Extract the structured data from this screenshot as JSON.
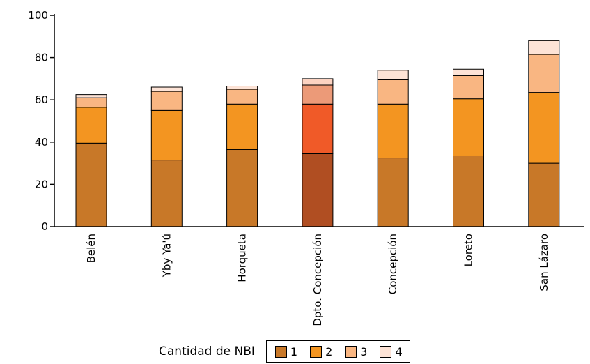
{
  "chart_data": {
    "type": "bar",
    "stacked": true,
    "categories": [
      "Belén",
      "Yby Ya'ú",
      "Horqueta",
      "Dpto. Concepción",
      "Concepción",
      "Loreto",
      "San Lázaro"
    ],
    "series": [
      {
        "name": "1",
        "color": "#c87828",
        "highlight_color": "#b04e22",
        "values": [
          39.5,
          31.5,
          36.5,
          34.5,
          32.5,
          33.5,
          30.0
        ]
      },
      {
        "name": "2",
        "color": "#f39521",
        "highlight_color": "#f05a28",
        "values": [
          17.0,
          23.5,
          21.5,
          23.5,
          25.5,
          27.0,
          33.5
        ]
      },
      {
        "name": "3",
        "color": "#f9b682",
        "highlight_color": "#ec9a78",
        "values": [
          4.5,
          9.0,
          7.0,
          9.0,
          11.5,
          11.0,
          18.0
        ]
      },
      {
        "name": "4",
        "color": "#fde3d6",
        "highlight_color": "#fcd3c2",
        "values": [
          1.5,
          2.0,
          1.5,
          3.0,
          4.5,
          3.0,
          6.5
        ]
      }
    ],
    "highlight_category": "Dpto. Concepción",
    "ylim": [
      0,
      100
    ],
    "yticks": [
      0,
      20,
      40,
      60,
      80,
      100
    ],
    "grid": false,
    "legend": {
      "title": "Cantidad de NBI",
      "placement": "bottom-center"
    }
  }
}
